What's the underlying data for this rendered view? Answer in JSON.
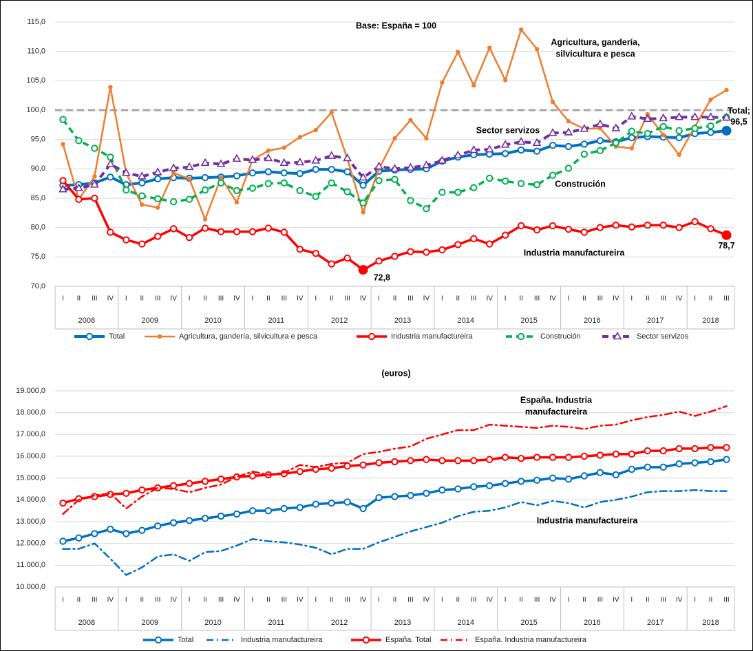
{
  "chart_data": [
    {
      "type": "line",
      "title": "Base: España = 100",
      "categories": [
        "I",
        "II",
        "III",
        "IV",
        "I",
        "II",
        "III",
        "IV",
        "I",
        "II",
        "III",
        "IV",
        "I",
        "II",
        "III",
        "IV",
        "I",
        "II",
        "III",
        "IV",
        "I",
        "II",
        "III",
        "IV",
        "I",
        "II",
        "III",
        "IV",
        "I",
        "II",
        "III",
        "IV",
        "I",
        "II",
        "III",
        "IV",
        "I",
        "II",
        "III",
        "IV",
        "I",
        "II",
        "III"
      ],
      "years": [
        "2008",
        "2009",
        "2010",
        "2011",
        "2012",
        "2013",
        "2014",
        "2015",
        "2016",
        "2017",
        "2018"
      ],
      "ylim": [
        70,
        115
      ],
      "yticks": [
        {
          "value": 70,
          "label": "70,0"
        },
        {
          "value": 75,
          "label": "75,0"
        },
        {
          "value": 80,
          "label": "80,0"
        },
        {
          "value": 85,
          "label": "85,0"
        },
        {
          "value": 90,
          "label": "90,0"
        },
        {
          "value": 95,
          "label": "95,0"
        },
        {
          "value": 100,
          "label": "100,0"
        },
        {
          "value": 105,
          "label": "105,0"
        },
        {
          "value": 110,
          "label": "110,0"
        },
        {
          "value": 115,
          "label": "115,0"
        }
      ],
      "grid": true,
      "hline": 100,
      "legend": "bottom",
      "annotations": [
        [
          "Agricultura, gandería,",
          "silvicultura e pesca"
        ],
        [
          "Sector servizos"
        ],
        [
          "Construción"
        ],
        [
          "Industria manufactureira"
        ]
      ],
      "series": [
        {
          "name": "Total",
          "color": "#0070c0",
          "width": 4,
          "dash": "solid",
          "marker": "circle-open",
          "values": [
            87.2,
            87.3,
            87.6,
            88.6,
            87.3,
            87.6,
            88.3,
            88.5,
            88.4,
            88.5,
            88.6,
            88.8,
            89.3,
            89.5,
            89.3,
            89.2,
            89.9,
            89.9,
            89.5,
            87.2,
            89.6,
            89.8,
            89.9,
            90.0,
            91.3,
            92.0,
            92.4,
            92.5,
            92.6,
            93.2,
            93.0,
            94.0,
            93.8,
            94.2,
            94.8,
            94.6,
            95.3,
            95.5,
            95.4,
            95.3,
            96.0,
            96.2,
            96.5
          ],
          "value_labels": [
            null,
            null,
            null,
            null,
            null,
            null,
            null,
            null,
            null,
            null,
            null,
            null,
            null,
            null,
            null,
            null,
            null,
            null,
            null,
            null,
            null,
            null,
            null,
            null,
            null,
            null,
            null,
            null,
            null,
            null,
            null,
            null,
            null,
            null,
            null,
            null,
            null,
            null,
            null,
            null,
            null,
            null,
            "Total; 96,5"
          ]
        },
        {
          "name": "Agricultura, gandería, silvicultura e pesca",
          "color": "#ed7d31",
          "width": 2.5,
          "dash": "solid",
          "marker": "dot",
          "values": [
            94.2,
            84.8,
            88.7,
            103.9,
            89.3,
            83.9,
            83.4,
            89.3,
            88.3,
            81.4,
            88.5,
            84.3,
            91.5,
            93.1,
            93.6,
            95.4,
            96.6,
            99.6,
            91.7,
            82.6,
            90.0,
            95.2,
            98.3,
            95.2,
            104.7,
            109.9,
            104.2,
            110.6,
            105.1,
            113.7,
            110.4,
            101.4,
            98.1,
            96.8,
            96.9,
            93.8,
            93.5,
            99.3,
            95.8,
            92.4,
            97.2,
            101.8,
            103.4
          ]
        },
        {
          "name": "Industria manufactureira",
          "color": "#ff0000",
          "width": 3.5,
          "dash": "solid",
          "marker": "circle-open",
          "values": [
            88.0,
            84.8,
            85.0,
            79.2,
            77.9,
            77.2,
            78.5,
            79.8,
            78.3,
            79.9,
            79.3,
            79.3,
            79.3,
            79.9,
            79.2,
            76.3,
            75.6,
            73.8,
            74.8,
            72.8,
            74.3,
            75.1,
            75.9,
            75.8,
            76.2,
            77.1,
            78.1,
            77.2,
            78.7,
            80.3,
            79.6,
            80.3,
            79.7,
            79.2,
            80.0,
            80.4,
            80.1,
            80.4,
            80.4,
            80.0,
            81.0,
            79.8,
            78.7
          ],
          "value_labels": [
            null,
            null,
            null,
            null,
            null,
            null,
            null,
            null,
            null,
            null,
            null,
            null,
            null,
            null,
            null,
            null,
            null,
            null,
            null,
            "72,8",
            null,
            null,
            null,
            null,
            null,
            null,
            null,
            null,
            null,
            null,
            null,
            null,
            null,
            null,
            null,
            null,
            null,
            null,
            null,
            null,
            null,
            null,
            "78,7"
          ]
        },
        {
          "name": "Construción",
          "color": "#00b050",
          "width": 3.5,
          "dash": "dash",
          "marker": "circle-open",
          "values": [
            98.4,
            94.8,
            93.5,
            92.0,
            86.4,
            85.4,
            84.9,
            84.4,
            84.8,
            86.4,
            87.6,
            86.3,
            86.7,
            87.5,
            87.6,
            86.3,
            85.3,
            87.6,
            86.1,
            84.2,
            88.0,
            88.2,
            84.6,
            83.2,
            86.0,
            86.0,
            86.8,
            88.4,
            87.9,
            87.5,
            87.3,
            88.9,
            90.1,
            92.5,
            93.1,
            94.4,
            96.4,
            96.0,
            97.2,
            96.5,
            96.9,
            97.3,
            98.8
          ]
        },
        {
          "name": "Sector servizos",
          "color": "#7030a0",
          "width": 4,
          "dash": "dash",
          "marker": "triangle-open",
          "values": [
            86.5,
            86.7,
            87.3,
            90.8,
            89.3,
            88.7,
            89.4,
            90.1,
            90.3,
            91.0,
            90.8,
            91.7,
            91.5,
            91.8,
            91.0,
            91.1,
            91.4,
            92.2,
            91.8,
            88.5,
            90.4,
            90.0,
            90.2,
            90.6,
            91.4,
            92.3,
            93.2,
            93.3,
            94.1,
            94.6,
            94.4,
            96.1,
            96.2,
            96.8,
            97.6,
            96.9,
            98.9,
            98.5,
            98.6,
            98.8,
            98.8,
            98.8,
            98.7
          ]
        }
      ]
    },
    {
      "type": "line",
      "title": "(euros)",
      "categories": [
        "I",
        "II",
        "III",
        "IV",
        "I",
        "II",
        "III",
        "IV",
        "I",
        "II",
        "III",
        "IV",
        "I",
        "II",
        "III",
        "IV",
        "I",
        "II",
        "III",
        "IV",
        "I",
        "II",
        "III",
        "IV",
        "I",
        "II",
        "III",
        "IV",
        "I",
        "II",
        "III",
        "IV",
        "I",
        "II",
        "III",
        "IV",
        "I",
        "II",
        "III",
        "IV",
        "I",
        "II",
        "III"
      ],
      "years": [
        "2008",
        "2009",
        "2010",
        "2011",
        "2012",
        "2013",
        "2014",
        "2015",
        "2016",
        "2017",
        "2018"
      ],
      "ylim": [
        10000,
        19000
      ],
      "yticks": [
        {
          "value": 10000,
          "label": "10.000,0"
        },
        {
          "value": 11000,
          "label": "11.000,0"
        },
        {
          "value": 12000,
          "label": "12.000,0"
        },
        {
          "value": 13000,
          "label": "13.000,0"
        },
        {
          "value": 14000,
          "label": "14.000,0"
        },
        {
          "value": 15000,
          "label": "15.000,0"
        },
        {
          "value": 16000,
          "label": "16.000,0"
        },
        {
          "value": 17000,
          "label": "17.000,0"
        },
        {
          "value": 18000,
          "label": "18.000,0"
        },
        {
          "value": 19000,
          "label": "19.000,0"
        }
      ],
      "grid": true,
      "legend": "bottom",
      "annotations": [
        [
          "España. Industria",
          "manufactureira"
        ],
        [
          "Industria manufactureira"
        ]
      ],
      "series": [
        {
          "name": "Total",
          "color": "#0070c0",
          "width": 3.5,
          "dash": "solid",
          "marker": "circle-open",
          "values": [
            12100,
            12250,
            12450,
            12650,
            12450,
            12600,
            12800,
            12950,
            13050,
            13150,
            13250,
            13350,
            13500,
            13500,
            13600,
            13650,
            13800,
            13850,
            13900,
            13600,
            14100,
            14150,
            14200,
            14300,
            14450,
            14500,
            14600,
            14650,
            14750,
            14850,
            14900,
            15000,
            14950,
            15100,
            15250,
            15150,
            15400,
            15500,
            15500,
            15650,
            15700,
            15750,
            15850
          ]
        },
        {
          "name": "Industria manufactureira",
          "color": "#0070c0",
          "width": 2.5,
          "dash": "dashdot",
          "marker": "none",
          "values": [
            11750,
            11750,
            12000,
            11300,
            10550,
            10900,
            11400,
            11500,
            11200,
            11600,
            11650,
            11900,
            12200,
            12100,
            12050,
            11950,
            11800,
            11500,
            11750,
            11750,
            12050,
            12300,
            12550,
            12750,
            12950,
            13250,
            13450,
            13500,
            13650,
            13900,
            13750,
            13950,
            13850,
            13650,
            13900,
            14000,
            14150,
            14350,
            14400,
            14400,
            14450,
            14400,
            14400
          ]
        },
        {
          "name": "España. Total",
          "color": "#ff0000",
          "width": 3.5,
          "dash": "solid",
          "marker": "circle-open",
          "values": [
            13850,
            14050,
            14150,
            14250,
            14300,
            14450,
            14550,
            14650,
            14750,
            14850,
            14950,
            15050,
            15100,
            15150,
            15200,
            15300,
            15400,
            15450,
            15550,
            15600,
            15700,
            15750,
            15800,
            15850,
            15800,
            15800,
            15800,
            15850,
            15950,
            15900,
            15950,
            15950,
            15950,
            16000,
            16050,
            16100,
            16100,
            16250,
            16250,
            16350,
            16350,
            16400,
            16400
          ]
        },
        {
          "name": "España. Industria manufactureira",
          "color": "#ff0000",
          "width": 2.5,
          "dash": "dashdot",
          "marker": "none",
          "values": [
            13350,
            14000,
            14200,
            14300,
            13600,
            14150,
            14550,
            14500,
            14350,
            14550,
            14700,
            15050,
            15300,
            15150,
            15250,
            15600,
            15500,
            15650,
            15700,
            16100,
            16200,
            16350,
            16450,
            16800,
            17000,
            17200,
            17200,
            17450,
            17400,
            17350,
            17300,
            17400,
            17350,
            17250,
            17400,
            17450,
            17650,
            17800,
            17900,
            18050,
            17850,
            18050,
            18300
          ]
        }
      ]
    }
  ]
}
